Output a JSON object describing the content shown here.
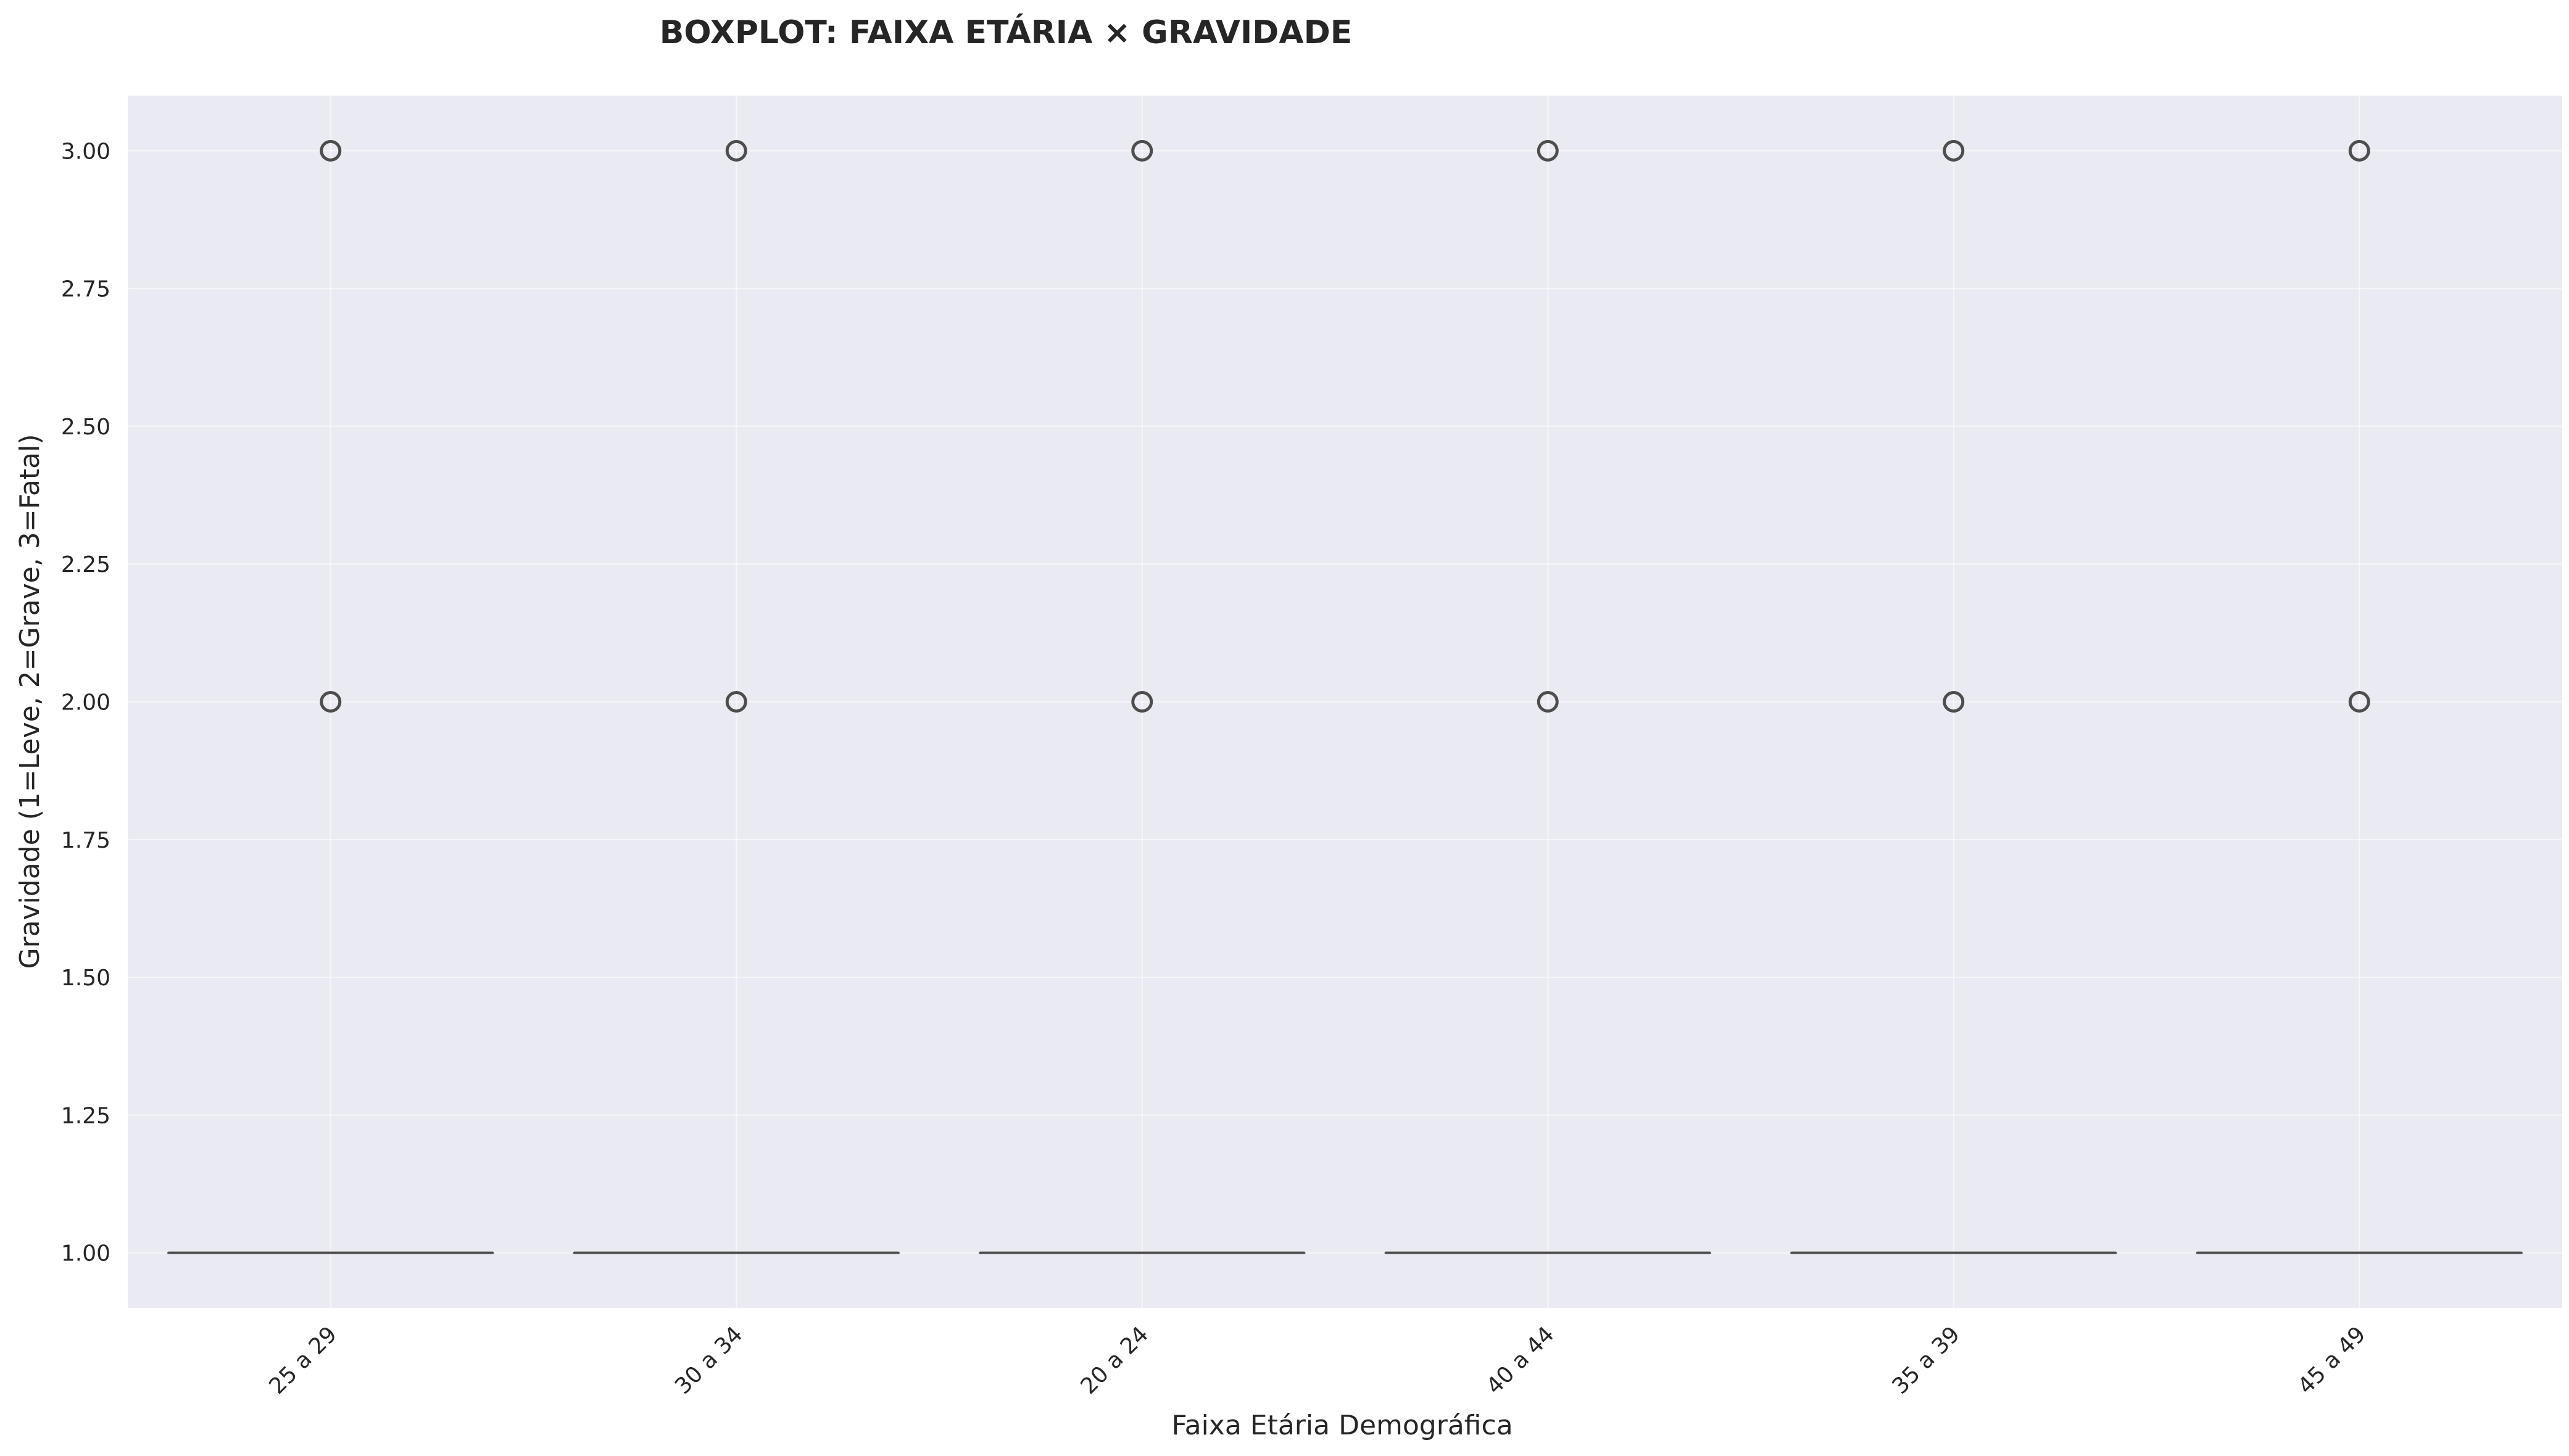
{
  "chart_data": {
    "type": "box",
    "title": "BOXPLOT: FAIXA ETÁRIA × GRAVIDADE",
    "xlabel": "Faixa Etária Demográfica",
    "ylabel": "Gravidade (1=Leve, 2=Grave, 3=Fatal)",
    "categories": [
      "25 a 29",
      "30 a 34",
      "20 a 24",
      "40 a 44",
      "35 a 39",
      "45 a 49"
    ],
    "boxes": [
      {
        "q1": 1,
        "median": 1,
        "q3": 1,
        "whisker_low": 1,
        "whisker_high": 1,
        "outliers": [
          2,
          3
        ]
      },
      {
        "q1": 1,
        "median": 1,
        "q3": 1,
        "whisker_low": 1,
        "whisker_high": 1,
        "outliers": [
          2,
          3
        ]
      },
      {
        "q1": 1,
        "median": 1,
        "q3": 1,
        "whisker_low": 1,
        "whisker_high": 1,
        "outliers": [
          2,
          3
        ]
      },
      {
        "q1": 1,
        "median": 1,
        "q3": 1,
        "whisker_low": 1,
        "whisker_high": 1,
        "outliers": [
          2,
          3
        ]
      },
      {
        "q1": 1,
        "median": 1,
        "q3": 1,
        "whisker_low": 1,
        "whisker_high": 1,
        "outliers": [
          2,
          3
        ]
      },
      {
        "q1": 1,
        "median": 1,
        "q3": 1,
        "whisker_low": 1,
        "whisker_high": 1,
        "outliers": [
          2,
          3
        ]
      }
    ],
    "ylim": [
      0.9,
      3.1
    ],
    "yticks": [
      1.0,
      1.25,
      1.5,
      1.75,
      2.0,
      2.25,
      2.5,
      2.75,
      3.0
    ],
    "ytick_labels": [
      "1.00",
      "1.25",
      "1.50",
      "1.75",
      "2.00",
      "2.25",
      "2.50",
      "2.75",
      "3.00"
    ],
    "xtick_rotation": 45,
    "grid": true,
    "colors": {
      "plot_background": "#eaeaf2",
      "box": "#4d4d4d",
      "grid": "#ffffff",
      "text": "#262626"
    }
  }
}
